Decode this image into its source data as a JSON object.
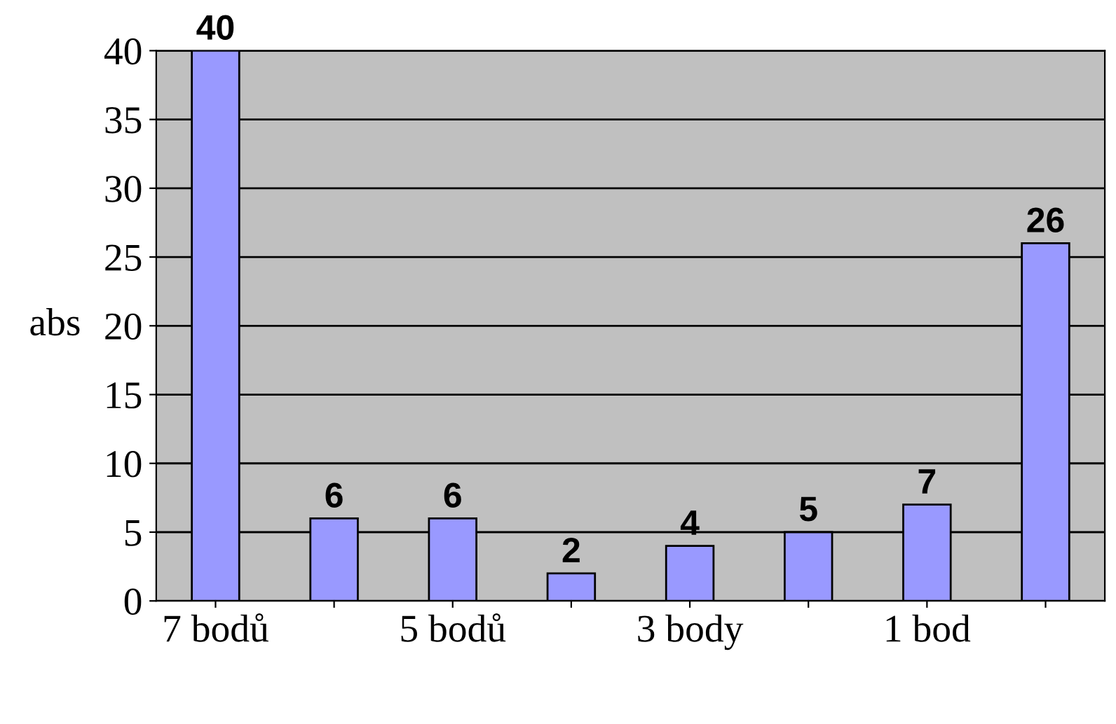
{
  "chart_data": {
    "type": "bar",
    "ylabel": "abs",
    "categories": [
      "7 bodů",
      null,
      "5 bodů",
      null,
      "3 body",
      null,
      "1 bod",
      null
    ],
    "values": [
      40,
      6,
      6,
      2,
      4,
      5,
      7,
      26
    ],
    "color": "#9999ff",
    "ylim": [
      0,
      40
    ],
    "yticks": [
      0,
      5,
      10,
      15,
      20,
      25,
      30,
      35,
      40
    ],
    "grid": "y",
    "data_labels": true,
    "legend": false
  }
}
